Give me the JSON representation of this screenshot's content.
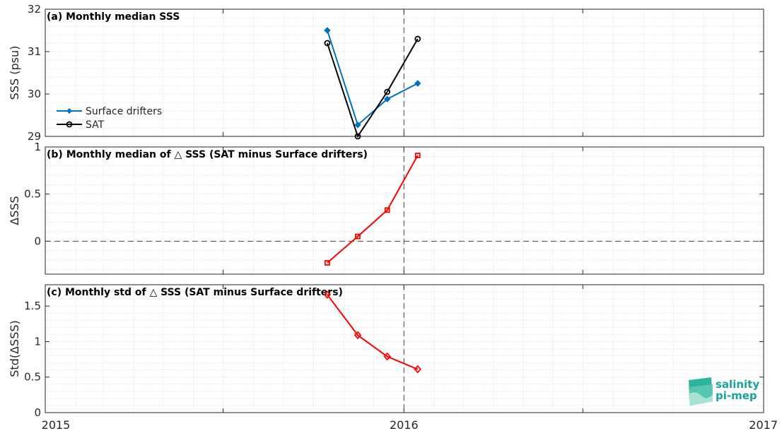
{
  "chart_data": [
    {
      "type": "line",
      "title": "(a) Monthly median SSS",
      "ylabel": "SSS (psu)",
      "ylim": [
        29,
        32
      ],
      "yticks": [
        29,
        30,
        31,
        32
      ],
      "xlim": [
        "2015-01-01",
        "2017-01-01"
      ],
      "xticks": [
        "2015",
        "2016",
        "2017"
      ],
      "vline": "2016-01-01",
      "grid": true,
      "legend_position": "left",
      "series": [
        {
          "name": "Surface drifters",
          "color": "#0072bd",
          "marker": "diamond-filled",
          "x": [
            "2015-10-15",
            "2015-11-15",
            "2015-12-15",
            "2016-01-15"
          ],
          "y": [
            31.5,
            29.27,
            29.88,
            30.25
          ]
        },
        {
          "name": "SAT",
          "color": "#000000",
          "marker": "circle-open",
          "x": [
            "2015-10-15",
            "2015-11-15",
            "2015-12-15",
            "2016-01-15"
          ],
          "y": [
            31.2,
            29.0,
            30.05,
            31.3
          ]
        }
      ]
    },
    {
      "type": "line",
      "title": "(b) Monthly median of △ SSS (SAT minus Surface drifters)",
      "ylabel": "ΔSSS",
      "ylim": [
        -0.35,
        1.0
      ],
      "yticks": [
        0,
        0.5,
        1
      ],
      "ytick_labels": [
        "0",
        "0.5",
        "1"
      ],
      "xlim": [
        "2015-01-01",
        "2017-01-01"
      ],
      "vline": "2016-01-01",
      "hline": 0,
      "grid": true,
      "series": [
        {
          "color": "#ff0000",
          "marker": "square-open",
          "x": [
            "2015-10-15",
            "2015-11-15",
            "2015-12-15",
            "2016-01-15"
          ],
          "y": [
            -0.23,
            0.05,
            0.33,
            0.91
          ]
        }
      ]
    },
    {
      "type": "line",
      "title": "(c) Monthly std of △ SSS (SAT minus Surface drifters)",
      "ylabel": "Std(ΔSSS)",
      "ylim": [
        0,
        1.8
      ],
      "yticks": [
        0,
        0.5,
        1,
        1.5
      ],
      "ytick_labels": [
        "0",
        "0.5",
        "1",
        "1.5"
      ],
      "xlim": [
        "2015-01-01",
        "2017-01-01"
      ],
      "xticks": [
        "2015",
        "2016",
        "2017"
      ],
      "vline": "2016-01-01",
      "grid": true,
      "series": [
        {
          "color": "#ff0000",
          "marker": "diamond-open",
          "x": [
            "2015-10-15",
            "2015-11-15",
            "2015-12-15",
            "2016-01-15"
          ],
          "y": [
            1.66,
            1.09,
            0.79,
            0.61
          ]
        }
      ]
    }
  ],
  "logo": {
    "line1": "salinity",
    "line2": "pi-mep",
    "color": "#1aa39a"
  }
}
